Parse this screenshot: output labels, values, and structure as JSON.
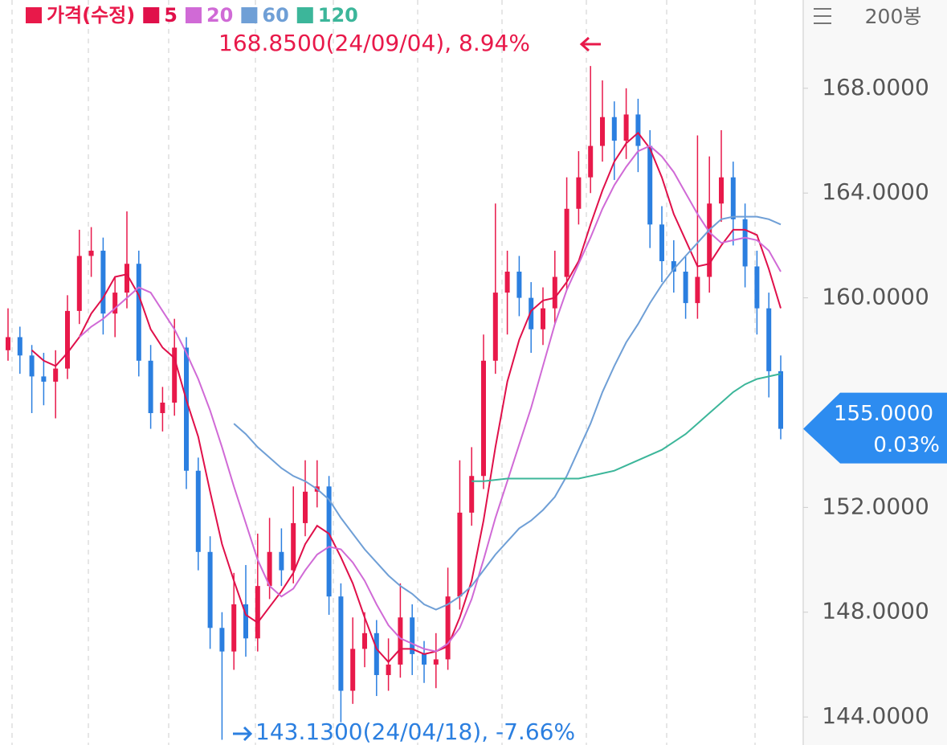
{
  "chart_data": {
    "type": "candlestick",
    "candle_name": "가격(수정)",
    "up_color": "#e8194a",
    "down_color": "#2b7fe0",
    "open": [
      158.0,
      158.5,
      157.8,
      157.0,
      156.8,
      157.3,
      159.5,
      161.6,
      161.8,
      159.4,
      160.2,
      161.3,
      157.6,
      155.6,
      156.0,
      158.1,
      153.4,
      150.3,
      147.4,
      146.5,
      148.3,
      147.0,
      149.0,
      150.3,
      149.6,
      151.4,
      152.6,
      152.8,
      148.6,
      145.0,
      146.6,
      147.2,
      145.6,
      146.0,
      147.8,
      146.4,
      146.0,
      146.2,
      148.6,
      151.8,
      153.2,
      157.6,
      160.2,
      161.0,
      160.0,
      158.8,
      159.6,
      160.8,
      163.4,
      164.6,
      165.8,
      166.9,
      166.0,
      167.0,
      165.8,
      162.8,
      161.4,
      161.0,
      159.8,
      160.8,
      163.6,
      164.6,
      163.0,
      161.2,
      159.6,
      157.2
    ],
    "high": [
      159.6,
      158.9,
      158.2,
      157.9,
      158.0,
      160.1,
      162.6,
      162.7,
      162.3,
      160.8,
      163.3,
      161.8,
      158.2,
      156.6,
      159.2,
      158.5,
      153.9,
      150.9,
      148.0,
      149.5,
      149.8,
      151.0,
      151.6,
      151.2,
      152.8,
      153.8,
      153.8,
      153.2,
      149.1,
      147.8,
      148.0,
      147.7,
      147.0,
      149.1,
      148.3,
      146.9,
      147.2,
      149.7,
      153.8,
      154.3,
      158.6,
      163.6,
      161.8,
      161.6,
      160.6,
      160.4,
      161.8,
      164.6,
      165.6,
      168.85,
      168.3,
      167.5,
      168.0,
      167.6,
      166.4,
      163.5,
      162.2,
      161.6,
      166.2,
      165.4,
      166.4,
      165.2,
      163.6,
      161.8,
      160.2,
      157.8
    ],
    "low": [
      157.6,
      157.1,
      155.6,
      155.9,
      155.4,
      156.9,
      159.0,
      160.8,
      158.6,
      158.5,
      159.6,
      157.0,
      155.0,
      154.9,
      155.5,
      152.7,
      149.6,
      146.6,
      143.13,
      145.8,
      146.3,
      146.5,
      148.5,
      149.0,
      149.1,
      150.9,
      152.0,
      147.9,
      143.8,
      144.5,
      145.9,
      144.8,
      145.0,
      145.5,
      145.6,
      145.3,
      145.1,
      145.8,
      148.1,
      151.3,
      152.7,
      157.1,
      158.6,
      159.3,
      157.9,
      158.2,
      159.0,
      160.3,
      162.8,
      164.0,
      165.2,
      164.5,
      165.3,
      164.8,
      161.9,
      160.6,
      160.2,
      159.2,
      159.2,
      160.2,
      162.9,
      162.0,
      160.4,
      158.6,
      156.2,
      154.6
    ],
    "close": [
      158.5,
      157.8,
      157.0,
      156.8,
      157.3,
      159.5,
      161.6,
      161.8,
      159.4,
      160.2,
      161.3,
      157.6,
      155.6,
      156.0,
      158.1,
      153.4,
      150.3,
      147.4,
      146.5,
      148.3,
      147.0,
      149.0,
      150.3,
      149.6,
      151.4,
      152.6,
      152.8,
      148.6,
      145.0,
      146.6,
      147.2,
      145.6,
      146.0,
      147.8,
      146.4,
      146.0,
      146.2,
      148.6,
      151.8,
      153.2,
      157.6,
      160.2,
      161.0,
      160.0,
      158.8,
      159.6,
      160.8,
      163.4,
      164.6,
      165.8,
      166.9,
      166.0,
      167.0,
      165.8,
      162.8,
      161.4,
      161.0,
      159.8,
      160.8,
      163.6,
      164.6,
      163.0,
      161.2,
      159.6,
      157.2,
      155.0
    ],
    "series": [
      {
        "name": "5",
        "color": "#e0104a",
        "values": [
          null,
          null,
          158.0,
          157.6,
          157.4,
          157.9,
          158.5,
          159.4,
          160.0,
          160.8,
          160.9,
          160.1,
          158.8,
          158.1,
          157.7,
          156.1,
          154.7,
          152.6,
          150.6,
          149.2,
          147.9,
          147.6,
          148.2,
          148.8,
          149.5,
          150.6,
          151.3,
          151.0,
          150.1,
          149.1,
          147.8,
          146.6,
          146.1,
          146.6,
          146.6,
          146.4,
          146.5,
          146.7,
          147.8,
          149.2,
          151.5,
          154.3,
          156.8,
          158.4,
          159.5,
          159.9,
          160.0,
          160.6,
          161.4,
          162.8,
          164.1,
          165.2,
          165.9,
          166.3,
          165.7,
          164.6,
          163.2,
          162.2,
          161.2,
          161.3,
          162.0,
          162.6,
          162.6,
          162.4,
          161.1,
          159.6
        ]
      },
      {
        "name": "20",
        "color": "#d06ad6",
        "values": [
          null,
          null,
          null,
          null,
          null,
          null,
          158.5,
          158.9,
          159.2,
          159.6,
          160.0,
          160.4,
          160.2,
          159.5,
          158.8,
          157.9,
          156.9,
          155.7,
          154.3,
          152.8,
          151.4,
          150.0,
          149.0,
          148.6,
          148.9,
          149.6,
          150.2,
          150.5,
          150.4,
          149.9,
          149.2,
          148.3,
          147.5,
          147.0,
          146.8,
          146.6,
          146.5,
          146.8,
          147.4,
          148.5,
          150.0,
          151.6,
          153.0,
          154.4,
          155.8,
          157.4,
          159.0,
          160.3,
          161.3,
          162.3,
          163.4,
          164.3,
          165.0,
          165.6,
          165.8,
          165.4,
          164.8,
          164.0,
          163.2,
          162.5,
          162.1,
          162.2,
          162.3,
          162.2,
          161.8,
          161.0
        ]
      },
      {
        "name": "60",
        "color": "#6f9fd6",
        "values": [
          null,
          null,
          null,
          null,
          null,
          null,
          null,
          null,
          null,
          null,
          null,
          null,
          null,
          null,
          null,
          null,
          null,
          null,
          null,
          155.2,
          154.8,
          154.3,
          153.9,
          153.5,
          153.2,
          153.0,
          152.7,
          152.3,
          151.6,
          151.0,
          150.4,
          149.9,
          149.4,
          149.0,
          148.7,
          148.3,
          148.1,
          148.3,
          148.6,
          149.0,
          149.6,
          150.2,
          150.7,
          151.2,
          151.5,
          151.9,
          152.4,
          153.2,
          154.2,
          155.2,
          156.4,
          157.4,
          158.3,
          159.0,
          159.8,
          160.5,
          161.1,
          161.6,
          162.1,
          162.6,
          163.0,
          163.1,
          163.1,
          163.1,
          163.0,
          162.8
        ]
      },
      {
        "name": "120",
        "color": "#3cb69a",
        "values": [
          null,
          null,
          null,
          null,
          null,
          null,
          null,
          null,
          null,
          null,
          null,
          null,
          null,
          null,
          null,
          null,
          null,
          null,
          null,
          null,
          null,
          null,
          null,
          null,
          null,
          null,
          null,
          null,
          null,
          null,
          null,
          null,
          null,
          null,
          null,
          null,
          null,
          null,
          null,
          153.0,
          153.0,
          153.05,
          153.1,
          153.1,
          153.1,
          153.1,
          153.1,
          153.1,
          153.1,
          153.2,
          153.3,
          153.4,
          153.6,
          153.8,
          154.0,
          154.2,
          154.5,
          154.8,
          155.2,
          155.6,
          156.0,
          156.4,
          156.7,
          156.9,
          157.0,
          157.1
        ]
      }
    ],
    "ylim": [
      142.93,
      171.37
    ],
    "yticks": [
      {
        "value": 144,
        "label": "144.0000"
      },
      {
        "value": 148,
        "label": "148.0000"
      },
      {
        "value": 152,
        "label": "152.0000"
      },
      {
        "value": 160,
        "label": "160.0000"
      },
      {
        "value": 164,
        "label": "164.0000"
      },
      {
        "value": 168,
        "label": "168.0000"
      }
    ],
    "max_label": "168.8500(24/09/04), 8.94%",
    "min_label": "143.1300(24/04/18), -7.66%",
    "last_price": {
      "value": 155,
      "label": "155.0000"
    },
    "last_change": "0.03%",
    "bar_count": "200봉"
  }
}
